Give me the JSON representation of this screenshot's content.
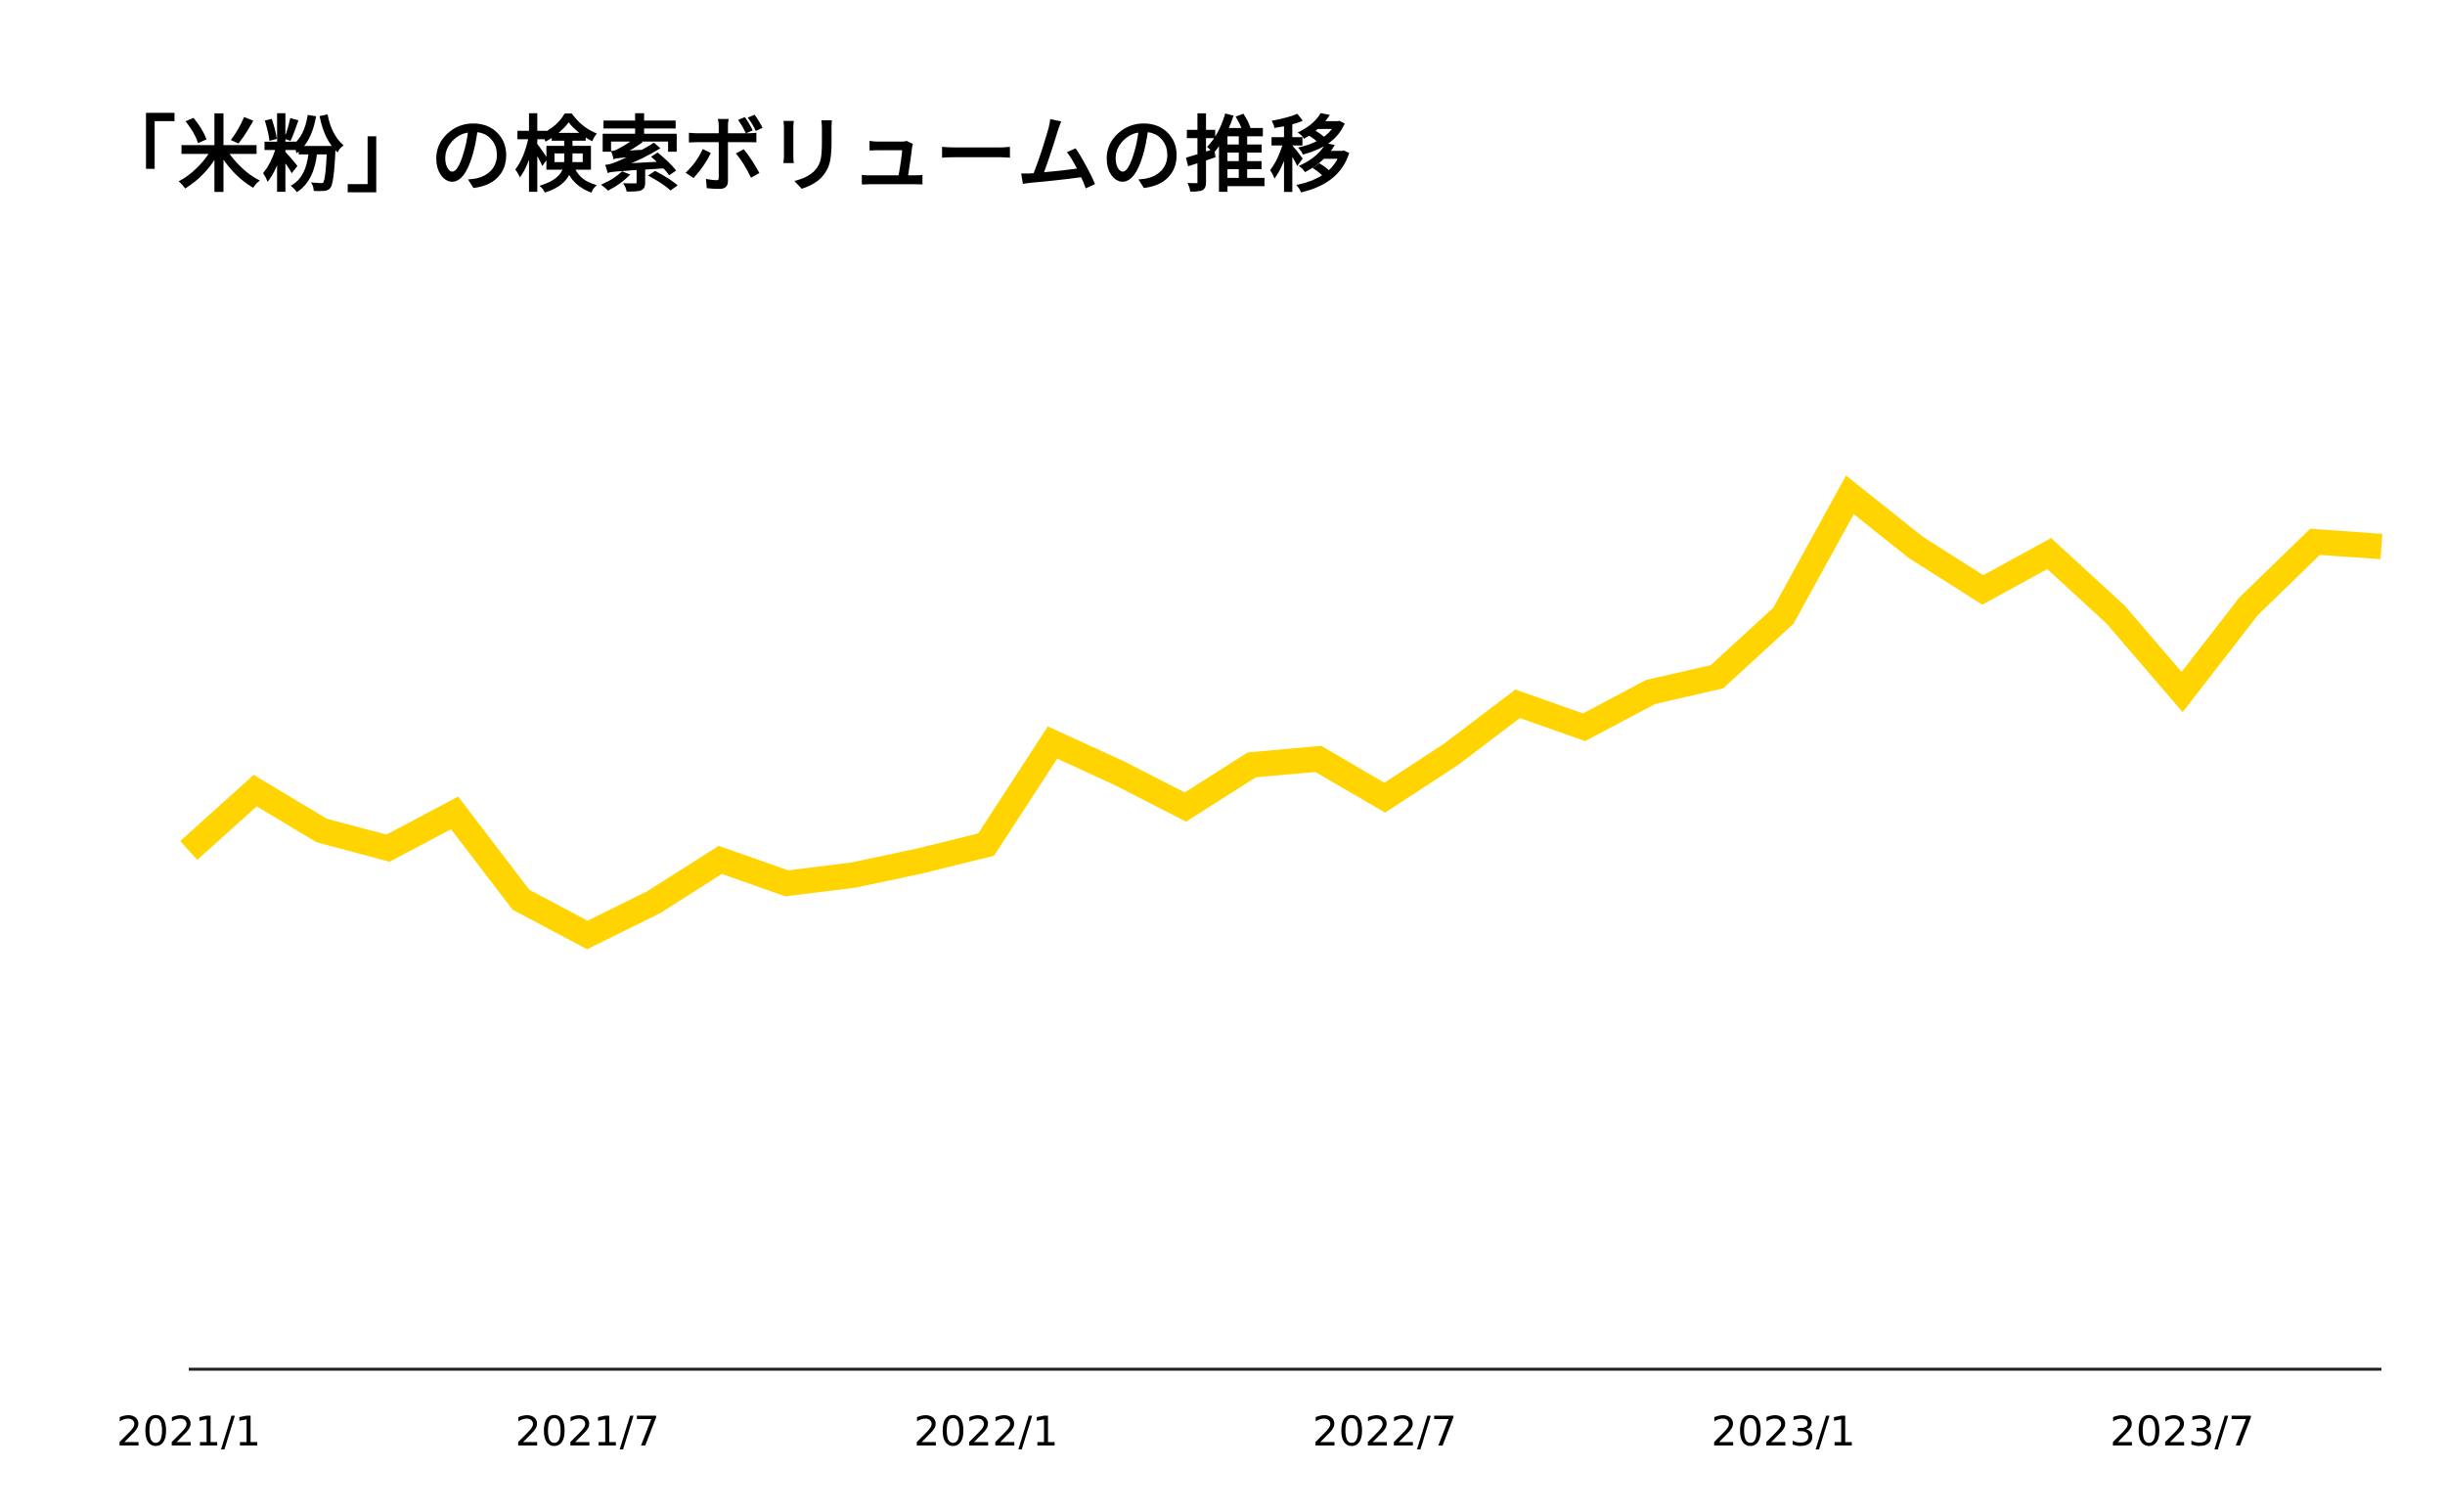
{
  "chart_data": {
    "type": "line",
    "title": "「米粉」の検索ボリュームの推移",
    "xlabel": "",
    "ylabel": "",
    "x": [
      "2021/1",
      "2021/2",
      "2021/3",
      "2021/4",
      "2021/5",
      "2021/6",
      "2021/7",
      "2021/8",
      "2021/9",
      "2021/10",
      "2021/11",
      "2021/12",
      "2022/1",
      "2022/2",
      "2022/3",
      "2022/4",
      "2022/5",
      "2022/6",
      "2022/7",
      "2022/8",
      "2022/9",
      "2022/10",
      "2022/11",
      "2022/12",
      "2023/1",
      "2023/2",
      "2023/3",
      "2023/4",
      "2023/5",
      "2023/6",
      "2023/7",
      "2023/8",
      "2023/9",
      "2023/10"
    ],
    "x_tick_labels": [
      "2021/1",
      "2021/7",
      "2022/1",
      "2022/7",
      "2023/1",
      "2023/7"
    ],
    "series": [
      {
        "color": "#FFD400",
        "values": [
          442,
          493,
          459,
          444,
          474,
          400,
          370,
          398,
          434,
          414,
          421,
          433,
          447,
          534,
          508,
          479,
          515,
          520,
          487,
          524,
          567,
          547,
          577,
          590,
          642,
          745,
          700,
          664,
          695,
          643,
          577,
          650,
          705,
          701
        ]
      }
    ],
    "ylim": [
      0,
      1000
    ],
    "grid": false,
    "legend": "none",
    "y_axis_visible": false
  }
}
